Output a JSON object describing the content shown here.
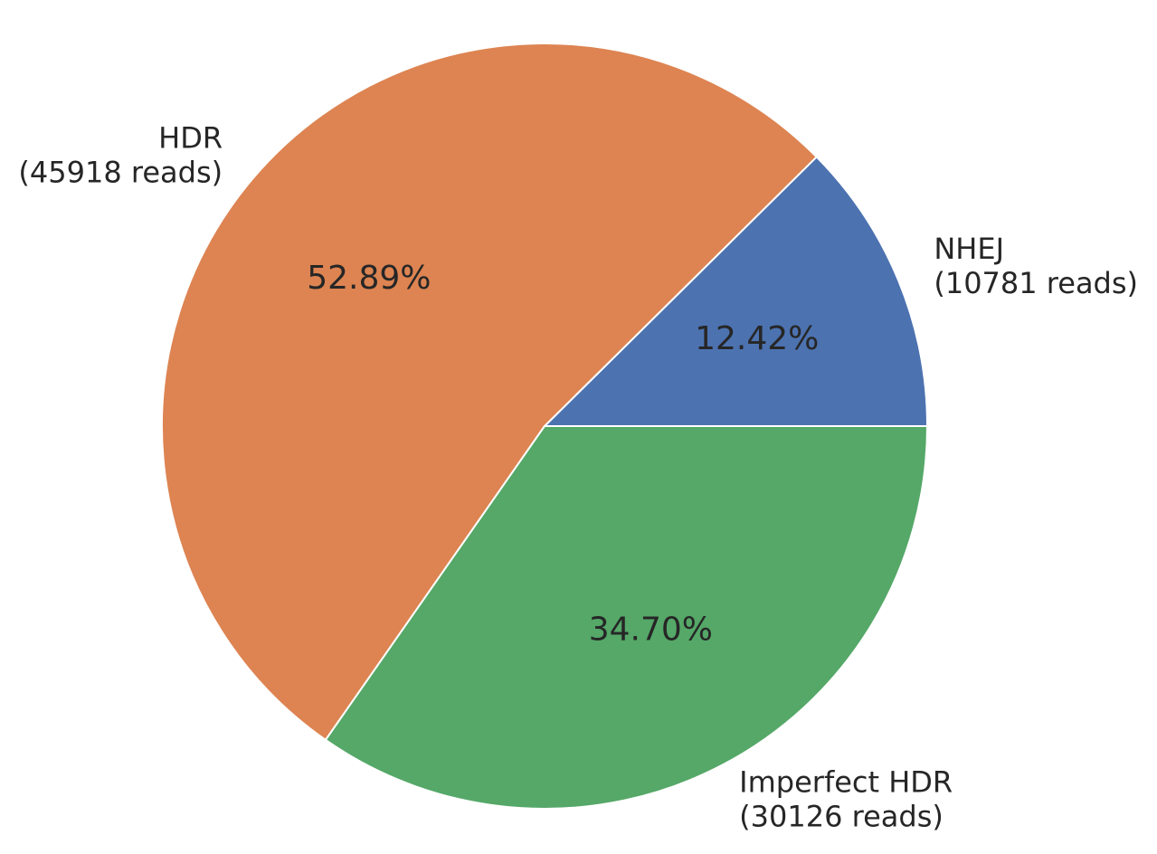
{
  "chart_data": {
    "type": "pie",
    "title": "",
    "start_angle_deg": 0,
    "direction": "counterclockwise",
    "slices": [
      {
        "name": "NHEJ",
        "reads_label": "(10781 reads)",
        "value": 10781,
        "percent_label": "12.42%",
        "color": "#4c72b0",
        "label_anchor": "start"
      },
      {
        "name": "HDR",
        "reads_label": "(45918 reads)",
        "value": 45918,
        "percent_label": "52.89%",
        "color": "#dd8452",
        "label_anchor": "end"
      },
      {
        "name": "Imperfect HDR",
        "reads_label": "(30126 reads)",
        "value": 30126,
        "percent_label": "34.70%",
        "color": "#55a868",
        "label_anchor": "start"
      }
    ],
    "wedge_edge_color": "#ffffff"
  }
}
